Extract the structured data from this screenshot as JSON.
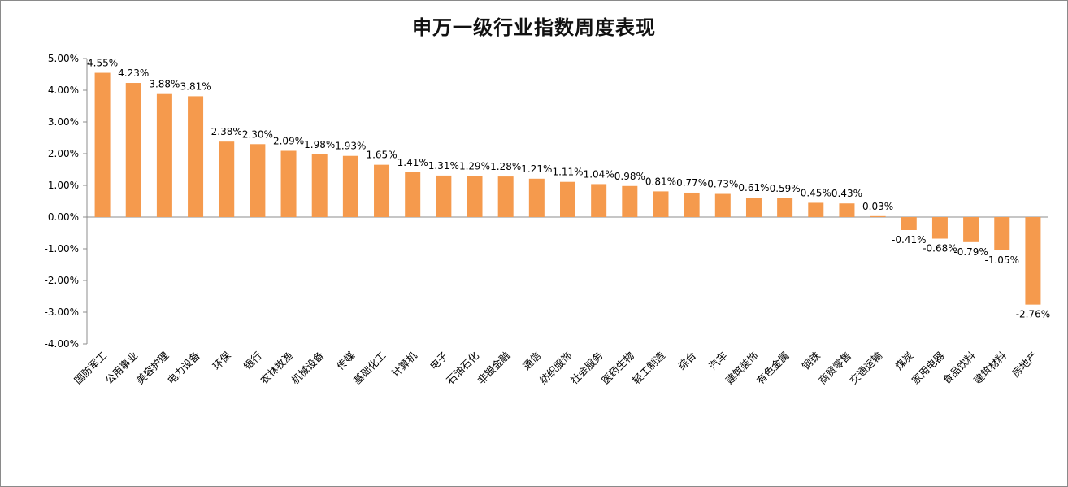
{
  "chart_data": {
    "type": "bar",
    "title": "申万一级行业指数周度表现",
    "xlabel": "",
    "ylabel": "",
    "ylim": [
      -4,
      5
    ],
    "grid": false,
    "legend": "none",
    "bar_color": "#F59A4D",
    "y_ticks": [
      "5.00%",
      "4.00%",
      "3.00%",
      "2.00%",
      "1.00%",
      "0.00%",
      "-1.00%",
      "-2.00%",
      "-3.00%",
      "-4.00%"
    ],
    "categories": [
      "国防军工",
      "公用事业",
      "美容护理",
      "电力设备",
      "环保",
      "银行",
      "农林牧渔",
      "机械设备",
      "传媒",
      "基础化工",
      "计算机",
      "电子",
      "石油石化",
      "非银金融",
      "通信",
      "纺织服饰",
      "社会服务",
      "医药生物",
      "轻工制造",
      "综合",
      "汽车",
      "建筑装饰",
      "有色金属",
      "钢铁",
      "商贸零售",
      "交通运输",
      "煤炭",
      "家用电器",
      "食品饮料",
      "建筑材料",
      "房地产"
    ],
    "values": [
      4.55,
      4.23,
      3.88,
      3.81,
      2.38,
      2.3,
      2.09,
      1.98,
      1.93,
      1.65,
      1.41,
      1.31,
      1.29,
      1.28,
      1.21,
      1.11,
      1.04,
      0.98,
      0.81,
      0.77,
      0.73,
      0.61,
      0.59,
      0.45,
      0.43,
      0.03,
      -0.41,
      -0.68,
      -0.79,
      -1.05,
      -2.76
    ],
    "data_labels": [
      "4.55%",
      "4.23%",
      "3.88%",
      "3.81%",
      "2.38%",
      "2.30%",
      "2.09%",
      "1.98%",
      "1.93%",
      "1.65%",
      "1.41%",
      "1.31%",
      "1.29%",
      "1.28%",
      "1.21%",
      "1.11%",
      "1.04%",
      "0.98%",
      "0.81%",
      "0.77%",
      "0.73%",
      "0.61%",
      "0.59%",
      "0.45%",
      "0.43%",
      "0.03%",
      "-0.41%",
      "-0.68%",
      "-0.79%",
      "-1.05%",
      "-2.76%"
    ]
  }
}
